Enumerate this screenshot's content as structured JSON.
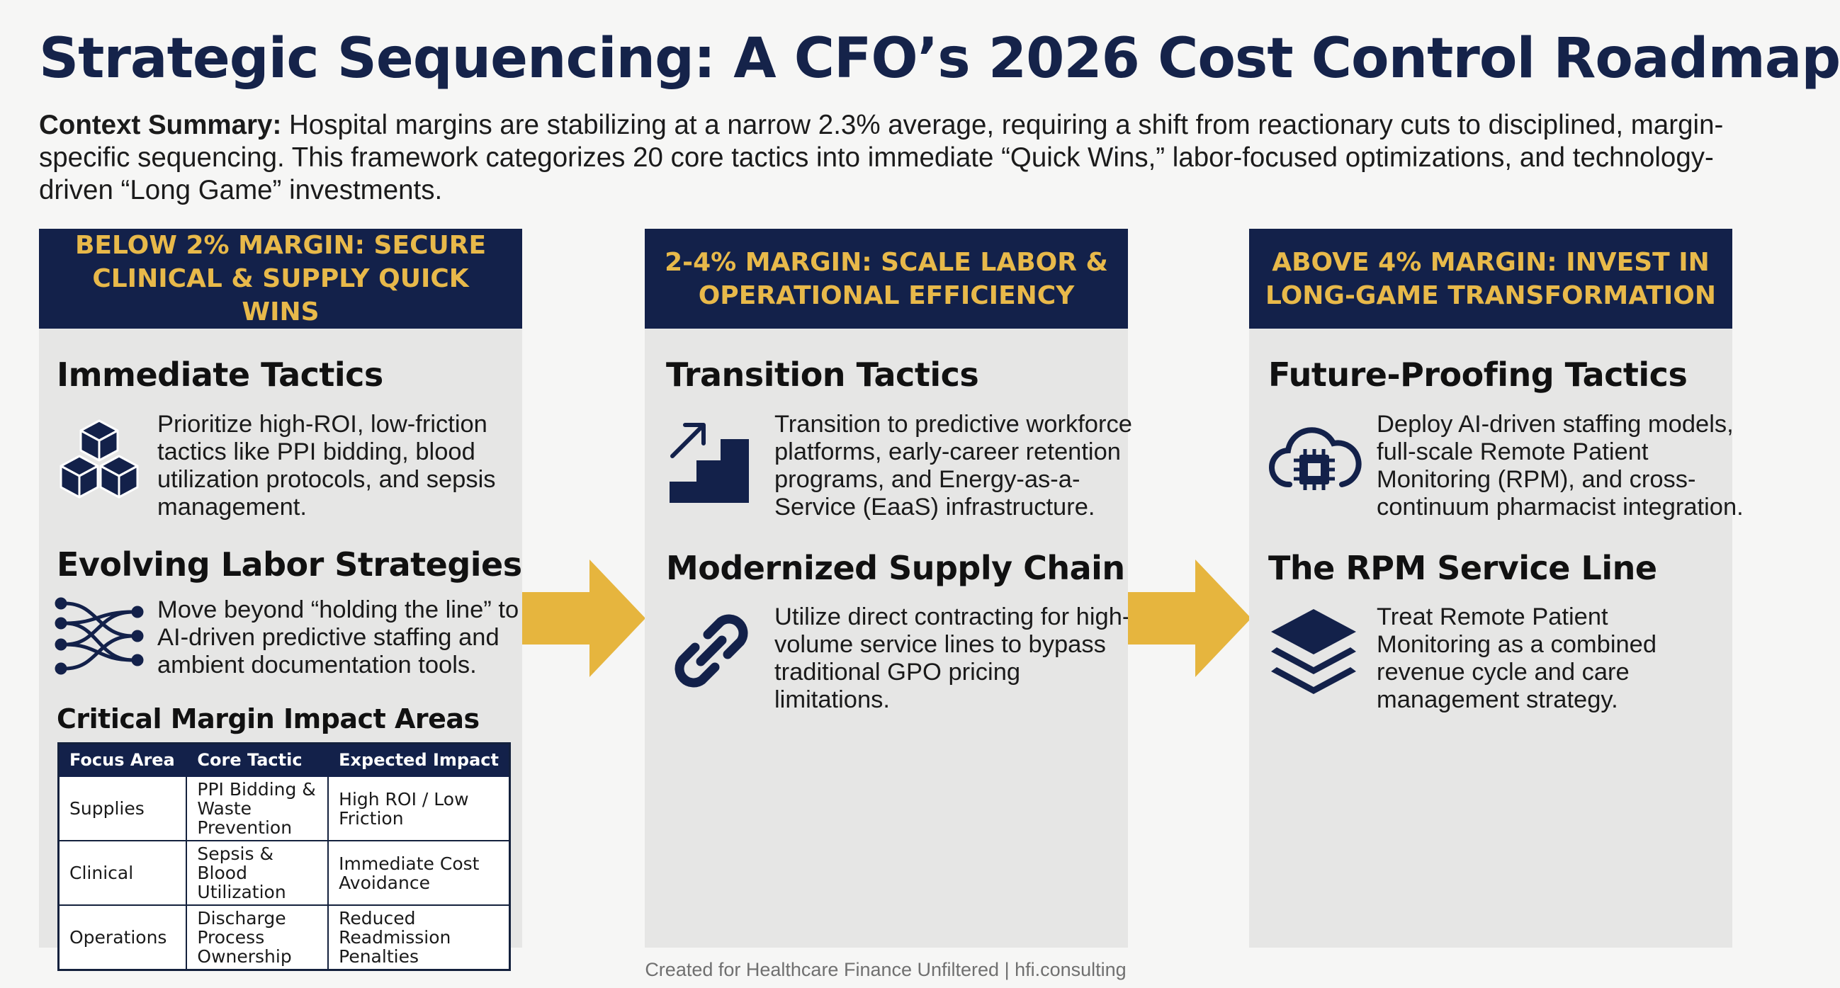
{
  "title": "Strategic Sequencing: A CFO’s 2026 Cost Control Roadmap",
  "summary": {
    "label": "Context Summary:",
    "text": " Hospital margins are stabilizing at a narrow 2.3% average, requiring a shift from reactionary cuts to disciplined, margin-specific sequencing. This framework categorizes 20 core tactics into immediate “Quick Wins,” labor-focused optimizations, and technology-driven “Long Game” investments."
  },
  "columns": [
    {
      "header": "BELOW 2% MARGIN: SECURE CLINICAL & SUPPLY QUICK WINS",
      "sections": [
        {
          "heading": "Immediate Tactics",
          "icon": "cubes-icon",
          "text": "Prioritize high-ROI, low-friction tactics like PPI bidding, blood utilization protocols, and sepsis management."
        },
        {
          "heading": "Evolving Labor Strategies",
          "icon": "network-flow-icon",
          "text": "Move beyond “holding the line” to AI-driven predictive staffing and ambient documentation tools."
        }
      ],
      "table": {
        "title": "Critical Margin Impact Areas",
        "headers": [
          "Focus Area",
          "Core Tactic",
          "Expected Impact"
        ],
        "rows": [
          [
            "Supplies",
            "PPI Bidding & Waste Prevention",
            "High ROI / Low Friction"
          ],
          [
            "Clinical",
            "Sepsis & Blood Utilization",
            "Immediate Cost Avoidance"
          ],
          [
            "Operations",
            "Discharge Process Ownership",
            "Reduced Readmission Penalties"
          ]
        ]
      }
    },
    {
      "header": "2-4% MARGIN: SCALE LABOR & OPERATIONAL EFFICIENCY",
      "sections": [
        {
          "heading": "Transition Tactics",
          "icon": "stairs-up-icon",
          "text": "Transition to predictive workforce platforms, early-career retention programs, and Energy-as-a-Service (EaaS) infrastructure."
        },
        {
          "heading": "Modernized Supply Chain",
          "icon": "chain-link-icon",
          "text": "Utilize direct contracting for high-volume service lines to bypass traditional GPO pricing limitations."
        }
      ]
    },
    {
      "header": "ABOVE 4% MARGIN: INVEST IN LONG-GAME TRANSFORMATION",
      "sections": [
        {
          "heading": "Future-Proofing Tactics",
          "icon": "cloud-chip-icon",
          "text": "Deploy AI-driven staffing models, full-scale Remote Patient Monitoring (RPM), and cross-continuum pharmacist integration."
        },
        {
          "heading": "The RPM Service Line",
          "icon": "layers-icon",
          "text": "Treat Remote Patient Monitoring as a combined revenue cycle and care management strategy."
        }
      ]
    }
  ],
  "footer": "Created for Healthcare Finance Unfiltered | hfi.consulting",
  "colors": {
    "navy": "#13214a",
    "gold": "#e8b94a",
    "panel": "#e6e6e5",
    "arrow": "#e6b53e"
  }
}
